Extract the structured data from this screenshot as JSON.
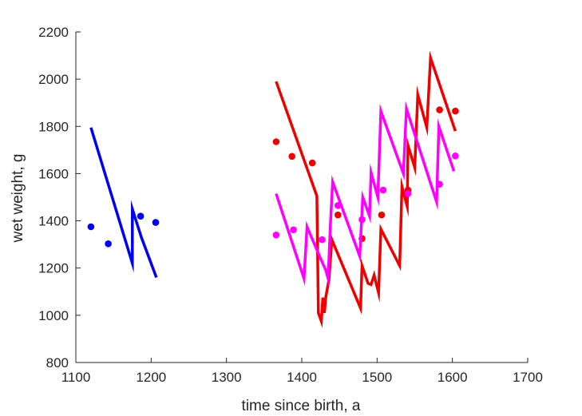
{
  "chart_data": {
    "type": "line",
    "title": "",
    "xlabel": "time since birth, a",
    "ylabel": "wet weight, g",
    "xlim": [
      1100,
      1700
    ],
    "ylim": [
      800,
      2200
    ],
    "xticks": [
      1100,
      1200,
      1300,
      1400,
      1500,
      1600,
      1700
    ],
    "yticks": [
      800,
      1000,
      1200,
      1400,
      1600,
      1800,
      2000,
      2200
    ],
    "grid": false,
    "legend": "none",
    "series": [
      {
        "color": "#0000ee",
        "line": [
          [
            1120,
            1795
          ],
          [
            1175,
            1220
          ],
          [
            1175,
            1450
          ],
          [
            1187,
            1330
          ],
          [
            1207,
            1160
          ]
        ],
        "points": [
          [
            1120,
            1375
          ],
          [
            1143,
            1303
          ],
          [
            1186,
            1420
          ],
          [
            1206,
            1393
          ]
        ]
      },
      {
        "color": "#ee0000",
        "line": [
          [
            1366,
            1990
          ],
          [
            1420,
            1505
          ],
          [
            1422,
            1010
          ],
          [
            1426,
            975
          ],
          [
            1428,
            1075
          ],
          [
            1430,
            1010
          ],
          [
            1432,
            1080
          ],
          [
            1436,
            1150
          ],
          [
            1440,
            1320
          ],
          [
            1478,
            1030
          ],
          [
            1480,
            1210
          ],
          [
            1488,
            1135
          ],
          [
            1492,
            1130
          ],
          [
            1496,
            1170
          ],
          [
            1502,
            1095
          ],
          [
            1505,
            1365
          ],
          [
            1530,
            1210
          ],
          [
            1533,
            1545
          ],
          [
            1540,
            1460
          ],
          [
            1541,
            1720
          ],
          [
            1550,
            1625
          ],
          [
            1554,
            1935
          ],
          [
            1566,
            1795
          ],
          [
            1571,
            2090
          ],
          [
            1604,
            1780
          ]
        ],
        "points": [
          [
            1366,
            1735
          ],
          [
            1387,
            1673
          ],
          [
            1414,
            1645
          ],
          [
            1448,
            1425
          ],
          [
            1480,
            1325
          ],
          [
            1506,
            1425
          ],
          [
            1541,
            1530
          ],
          [
            1583,
            1870
          ],
          [
            1604,
            1865
          ]
        ]
      },
      {
        "color": "#ff00ff",
        "line": [
          [
            1366,
            1515
          ],
          [
            1403,
            1155
          ],
          [
            1407,
            1375
          ],
          [
            1425,
            1240
          ],
          [
            1432,
            1190
          ],
          [
            1435,
            1155
          ],
          [
            1438,
            1380
          ],
          [
            1441,
            1565
          ],
          [
            1477,
            1250
          ],
          [
            1481,
            1500
          ],
          [
            1490,
            1420
          ],
          [
            1492,
            1605
          ],
          [
            1501,
            1500
          ],
          [
            1505,
            1865
          ],
          [
            1535,
            1600
          ],
          [
            1539,
            1875
          ],
          [
            1579,
            1480
          ],
          [
            1582,
            1800
          ],
          [
            1602,
            1610
          ]
        ],
        "points": [
          [
            1366,
            1340
          ],
          [
            1389,
            1362
          ],
          [
            1427,
            1320
          ],
          [
            1448,
            1465
          ],
          [
            1480,
            1405
          ],
          [
            1508,
            1530
          ],
          [
            1541,
            1515
          ],
          [
            1583,
            1555
          ],
          [
            1604,
            1675
          ]
        ]
      }
    ]
  }
}
